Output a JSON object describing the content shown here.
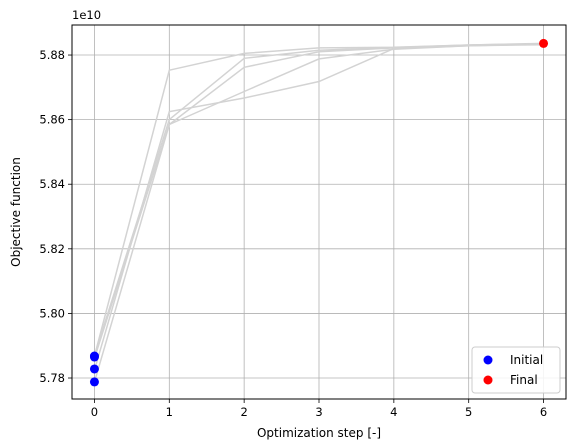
{
  "chart_data": {
    "type": "scatter",
    "title": "",
    "xlabel": "Optimization step [-]",
    "ylabel": "Objective function",
    "y_offset_label": "1e10",
    "y_scale": 10000000000.0,
    "xlim": [
      -0.3,
      6.3
    ],
    "ylim": [
      5.7735,
      5.8893
    ],
    "x_ticks": [
      0,
      1,
      2,
      3,
      4,
      5,
      6
    ],
    "x_tick_labels": [
      "0",
      "1",
      "2",
      "3",
      "4",
      "5",
      "6"
    ],
    "y_ticks": [
      5.78,
      5.8,
      5.82,
      5.84,
      5.86,
      5.88
    ],
    "y_tick_labels": [
      "5.78",
      "5.80",
      "5.82",
      "5.84",
      "5.86",
      "5.88"
    ],
    "grid": true,
    "legend_position": "bottom-right",
    "trajectory_color": "#d3d3d3",
    "trajectories": [
      {
        "x": [
          0,
          1,
          2,
          3,
          4,
          5,
          6
        ],
        "values": [
          5.7868,
          5.8753,
          5.8805,
          5.8822,
          5.8824,
          5.8831,
          5.8836
        ]
      },
      {
        "x": [
          0,
          1,
          2,
          3,
          4,
          5,
          6
        ],
        "values": [
          5.7825,
          5.8625,
          5.8667,
          5.8718,
          5.882,
          5.8829,
          5.8834
        ]
      },
      {
        "x": [
          0,
          1,
          2,
          3,
          4,
          5,
          6
        ],
        "values": [
          5.7862,
          5.8585,
          5.8762,
          5.881,
          5.8822,
          5.883,
          5.8833
        ]
      },
      {
        "x": [
          0,
          1,
          2,
          3,
          4,
          5,
          6
        ],
        "values": [
          5.7788,
          5.8585,
          5.8687,
          5.8788,
          5.8818,
          5.8829,
          5.8832
        ]
      },
      {
        "x": [
          0,
          1,
          2,
          3,
          4,
          5,
          6
        ],
        "values": [
          5.787,
          5.86,
          5.879,
          5.8815,
          5.8823,
          5.8831,
          5.8835
        ]
      }
    ],
    "series": [
      {
        "name": "Initial",
        "color": "#0000ff",
        "x": [
          0,
          0,
          0,
          0
        ],
        "values": [
          5.7868,
          5.7865,
          5.7828,
          5.7788
        ]
      },
      {
        "name": "Final",
        "color": "#ff0000",
        "x": [
          6
        ],
        "values": [
          5.8836
        ]
      }
    ]
  }
}
